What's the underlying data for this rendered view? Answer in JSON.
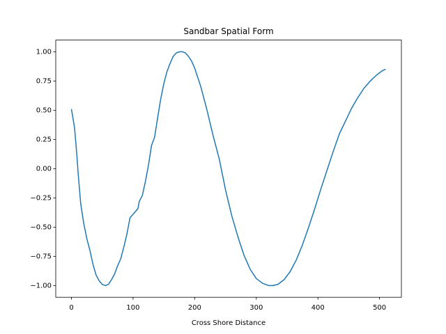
{
  "chart_data": {
    "type": "line",
    "title": "Sandbar Spatial Form",
    "x_label": "Cross Shore Distance",
    "x": [
      0,
      5,
      9,
      11,
      15,
      20,
      25,
      30,
      35,
      40,
      45,
      50,
      55,
      60,
      65,
      70,
      75,
      80,
      85,
      90,
      95,
      100,
      105,
      108,
      110,
      115,
      120,
      125,
      130,
      135,
      140,
      145,
      150,
      155,
      160,
      165,
      170,
      175,
      180,
      185,
      190,
      195,
      200,
      210,
      220,
      230,
      240,
      250,
      260,
      270,
      280,
      290,
      300,
      310,
      320,
      327,
      335,
      345,
      355,
      365,
      375,
      385,
      395,
      405,
      415,
      425,
      435,
      445,
      455,
      465,
      475,
      485,
      495,
      505,
      510
    ],
    "series": [
      {
        "name": "sandbar",
        "color": "#1f77b4",
        "values": [
          0.51,
          0.35,
          0.1,
          -0.05,
          -0.3,
          -0.47,
          -0.6,
          -0.7,
          -0.82,
          -0.91,
          -0.96,
          -0.99,
          -1.0,
          -0.99,
          -0.95,
          -0.9,
          -0.83,
          -0.77,
          -0.67,
          -0.56,
          -0.42,
          -0.39,
          -0.36,
          -0.34,
          -0.28,
          -0.23,
          -0.11,
          0.03,
          0.2,
          0.27,
          0.44,
          0.6,
          0.73,
          0.83,
          0.9,
          0.96,
          0.99,
          1.0,
          1.0,
          0.99,
          0.96,
          0.92,
          0.86,
          0.7,
          0.5,
          0.28,
          0.08,
          -0.18,
          -0.4,
          -0.58,
          -0.74,
          -0.86,
          -0.94,
          -0.98,
          -1.0,
          -1.0,
          -0.99,
          -0.95,
          -0.88,
          -0.78,
          -0.65,
          -0.5,
          -0.34,
          -0.17,
          -0.01,
          0.15,
          0.3,
          0.41,
          0.52,
          0.61,
          0.69,
          0.75,
          0.8,
          0.84,
          0.85
        ]
      }
    ],
    "xlim": [
      -25.5,
      535.5
    ],
    "xticks": [
      0,
      100,
      200,
      300,
      400,
      500
    ],
    "ylim": [
      -1.1,
      1.1
    ],
    "yticks": [
      {
        "value": -1,
        "label": "−1.00"
      },
      {
        "value": -0.75,
        "label": "−0.75"
      },
      {
        "value": -0.5,
        "label": "−0.50"
      },
      {
        "value": -0.25,
        "label": "−0.25"
      },
      {
        "value": 0,
        "label": "0.00"
      },
      {
        "value": 0.25,
        "label": "0.25"
      },
      {
        "value": 0.5,
        "label": "0.50"
      },
      {
        "value": 0.75,
        "label": "0.75"
      },
      {
        "value": 1,
        "label": "1.00"
      }
    ],
    "grid": false
  }
}
